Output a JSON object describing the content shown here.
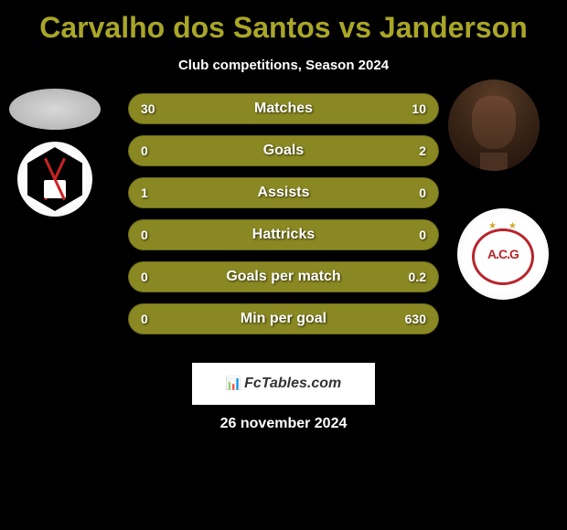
{
  "title": "Carvalho dos Santos vs Janderson",
  "subtitle": "Club competitions, Season 2024",
  "date": "26 november 2024",
  "watermark": "FcTables.com",
  "colors": {
    "background": "#000000",
    "title": "#a9a628",
    "subtitle": "#ffffff",
    "bar_primary": "#8a8822",
    "bar_secondary": "#a9a628",
    "bar_dark": "#6b6919",
    "text": "#ffffff"
  },
  "player_left": {
    "name": "Carvalho dos Santos",
    "club_badge": "vasco-badge"
  },
  "player_right": {
    "name": "Janderson",
    "club_badge": "acg-badge",
    "club_text": "A.C.G"
  },
  "stats": [
    {
      "label": "Matches",
      "left_value": "30",
      "right_value": "10",
      "left_width_pct": 75,
      "right_width_pct": 25
    },
    {
      "label": "Goals",
      "left_value": "0",
      "right_value": "2",
      "left_width_pct": 0,
      "right_width_pct": 100
    },
    {
      "label": "Assists",
      "left_value": "1",
      "right_value": "0",
      "left_width_pct": 100,
      "right_width_pct": 0
    },
    {
      "label": "Hattricks",
      "left_value": "0",
      "right_value": "0",
      "left_width_pct": 50,
      "right_width_pct": 50
    },
    {
      "label": "Goals per match",
      "left_value": "0",
      "right_value": "0.2",
      "left_width_pct": 0,
      "right_width_pct": 100
    },
    {
      "label": "Min per goal",
      "left_value": "0",
      "right_value": "630",
      "left_width_pct": 0,
      "right_width_pct": 100
    }
  ]
}
